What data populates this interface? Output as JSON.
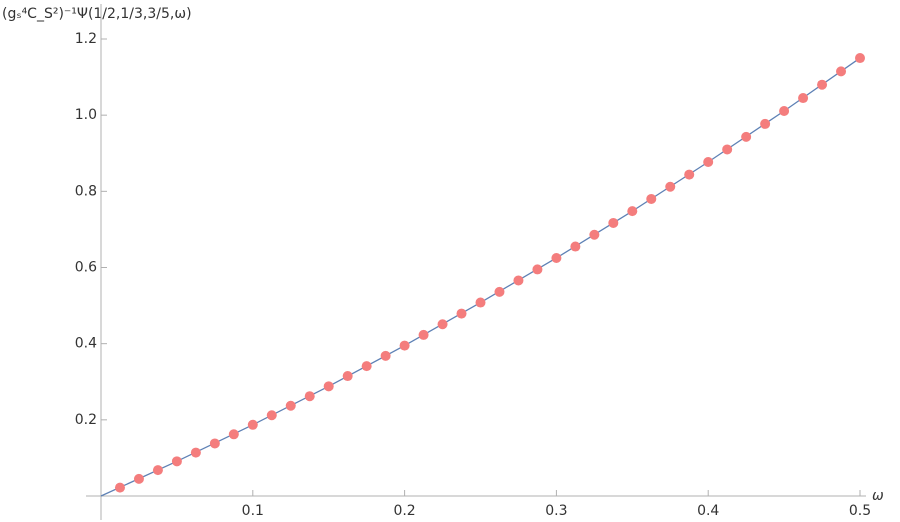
{
  "chart_data": {
    "type": "line_scatter",
    "ylabel": "(gₛ⁴C_S²)⁻¹Ψ(1/2,1/3,3/5,ω)",
    "xlabel": "ω",
    "xlim": [
      0,
      0.5
    ],
    "ylim": [
      0,
      1.2
    ],
    "xticks": [
      0.1,
      0.2,
      0.3,
      0.4,
      0.5
    ],
    "yticks": [
      0.2,
      0.4,
      0.6,
      0.8,
      {
        "value": 1,
        "label": "1.0"
      },
      1.2
    ],
    "series": [
      {
        "kind": "line",
        "color": "#5e81b5",
        "x": [
          0,
          0.05,
          0.1,
          0.15,
          0.2,
          0.25,
          0.3,
          0.35,
          0.4,
          0.45,
          0.5
        ],
        "values": [
          0,
          0.091,
          0.187,
          0.288,
          0.395,
          0.508,
          0.625,
          0.748,
          0.877,
          1.011,
          1.15
        ]
      },
      {
        "kind": "scatter",
        "color": "#f47d7d",
        "x": [
          0.0125,
          0.025,
          0.0375,
          0.05,
          0.0625,
          0.075,
          0.0875,
          0.1,
          0.1125,
          0.125,
          0.1375,
          0.15,
          0.1625,
          0.175,
          0.1875,
          0.2,
          0.2125,
          0.225,
          0.2375,
          0.25,
          0.2625,
          0.275,
          0.2875,
          0.3,
          0.3125,
          0.325,
          0.3375,
          0.35,
          0.3625,
          0.375,
          0.3875,
          0.4,
          0.4125,
          0.425,
          0.4375,
          0.45,
          0.4625,
          0.475,
          0.4875,
          0.5
        ],
        "values": [
          0.022,
          0.045,
          0.068,
          0.091,
          0.114,
          0.138,
          0.162,
          0.187,
          0.212,
          0.237,
          0.262,
          0.288,
          0.315,
          0.341,
          0.368,
          0.395,
          0.423,
          0.451,
          0.479,
          0.508,
          0.536,
          0.566,
          0.595,
          0.625,
          0.655,
          0.686,
          0.717,
          0.748,
          0.78,
          0.812,
          0.844,
          0.877,
          0.91,
          0.943,
          0.977,
          1.011,
          1.045,
          1.08,
          1.115,
          1.15
        ]
      }
    ]
  }
}
